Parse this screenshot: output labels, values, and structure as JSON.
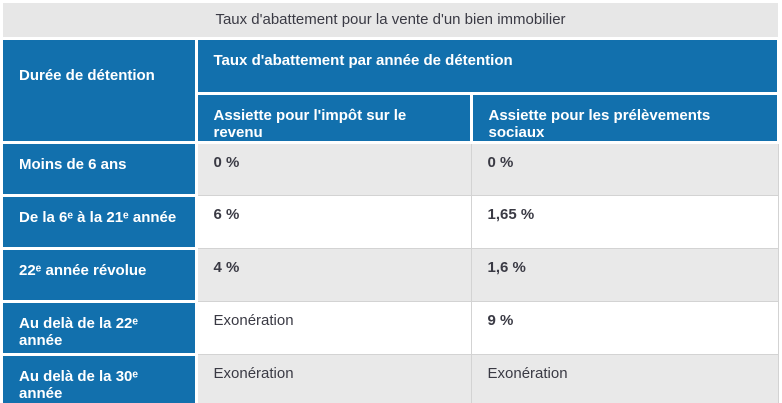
{
  "title": "Taux d'abattement pour la vente d'un bien immobilier",
  "colors": {
    "header_blue": "#1270ad",
    "title_bg": "#e7e7e7",
    "row_alt_gray": "#e9e9e9",
    "grid_line": "#d3d3d3",
    "text_dark": "#3a3a44",
    "header_text": "#ffffff"
  },
  "table": {
    "corner_header": "Durée de détention",
    "group_header": "Taux d'abattement par année de détention",
    "col_header_ir": "Assiette pour l'impôt sur le revenu",
    "col_header_ps": "Assiette pour les prélèvements sociaux",
    "rows": [
      {
        "duration": "Moins de 6 ans",
        "ir": "0 %",
        "ps": "0 %"
      },
      {
        "duration": "De la 6ᵉ à la 21ᵉ année",
        "ir": "6 %",
        "ps": "1,65 %"
      },
      {
        "duration": "22ᵉ année révolue",
        "ir": "4 %",
        "ps": "1,6 %"
      },
      {
        "duration": "Au delà de la 22ᵉ année",
        "ir": "Exonération",
        "ps": "9 %"
      },
      {
        "duration": "Au delà de la 30ᵉ année",
        "ir": "Exonération",
        "ps": "Exonération"
      }
    ]
  }
}
